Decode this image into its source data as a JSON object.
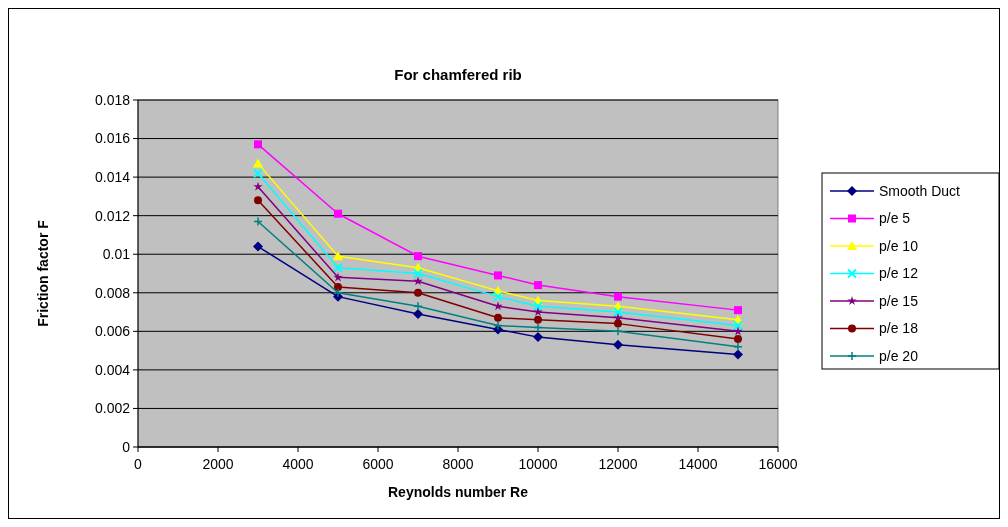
{
  "chart_data": {
    "type": "line",
    "title": "For chamfered rib",
    "xlabel": "Reynolds number Re",
    "ylabel": "Friction factor F",
    "x": [
      3000,
      5000,
      7000,
      9000,
      10000,
      12000,
      15000
    ],
    "xlim": [
      0,
      16000
    ],
    "xticks": [
      0,
      2000,
      4000,
      6000,
      8000,
      10000,
      12000,
      14000,
      16000
    ],
    "ylim": [
      0,
      0.018
    ],
    "yticks": [
      0,
      0.002,
      0.004,
      0.006,
      0.008,
      0.01,
      0.012,
      0.014,
      0.016,
      0.018
    ],
    "grid": "y",
    "legend": "right",
    "line_style": "solid",
    "series": [
      {
        "name": "Smooth Duct",
        "color": "#000080",
        "marker": "diamond",
        "values": [
          0.0104,
          0.0078,
          0.0069,
          0.0061,
          0.0057,
          0.0053,
          0.0048
        ]
      },
      {
        "name": "p/e 5",
        "color": "#ff00ff",
        "marker": "square",
        "values": [
          0.0157,
          0.0121,
          0.0099,
          0.0089,
          0.0084,
          0.0078,
          0.0071
        ]
      },
      {
        "name": "p/e 10",
        "color": "#ffff00",
        "marker": "triangle",
        "values": [
          0.0147,
          0.0099,
          0.0093,
          0.0081,
          0.0076,
          0.0073,
          0.0066
        ]
      },
      {
        "name": "p/e 12",
        "color": "#00ffff",
        "marker": "cross",
        "values": [
          0.0142,
          0.0093,
          0.009,
          0.0078,
          0.0073,
          0.007,
          0.0063
        ]
      },
      {
        "name": "p/e 15",
        "color": "#800080",
        "marker": "star",
        "values": [
          0.0135,
          0.0088,
          0.0086,
          0.0073,
          0.007,
          0.0067,
          0.006
        ]
      },
      {
        "name": "p/e 18",
        "color": "#800000",
        "marker": "circle",
        "values": [
          0.0128,
          0.0083,
          0.008,
          0.0067,
          0.0066,
          0.0064,
          0.0056
        ]
      },
      {
        "name": "p/e 20",
        "color": "#008080",
        "marker": "plus",
        "values": [
          0.0117,
          0.008,
          0.0073,
          0.0063,
          0.0062,
          0.006,
          0.0052
        ]
      }
    ]
  }
}
